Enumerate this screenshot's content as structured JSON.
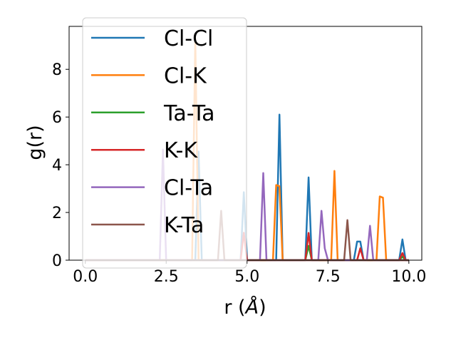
{
  "chart_data": {
    "type": "line",
    "title": "",
    "xlabel": "r (",
    "xlabel_unit": "Å",
    "xlabel_close": ")",
    "ylabel": "g(r)",
    "xlim": [
      -0.5,
      10.4
    ],
    "ylim": [
      0,
      9.8
    ],
    "xticks": [
      0.0,
      2.5,
      5.0,
      7.5,
      10.0
    ],
    "xtick_labels": [
      "0.0",
      "2.5",
      "5.0",
      "7.5",
      "10.0"
    ],
    "yticks": [
      0,
      2,
      4,
      6,
      8
    ],
    "ytick_labels": [
      "0",
      "2",
      "4",
      "6",
      "8"
    ],
    "grid": false,
    "legend_position": "top-left",
    "x_grid": {
      "start": 0,
      "stop": 10,
      "step": 0.1
    },
    "series": [
      {
        "name": "Cl-Cl",
        "color": "#1f77b4",
        "peaks": [
          [
            3.5,
            4.55
          ],
          [
            4.9,
            2.85
          ],
          [
            6.0,
            6.1
          ],
          [
            6.9,
            3.47
          ],
          [
            8.4,
            0.78
          ],
          [
            8.5,
            0.78
          ],
          [
            9.8,
            0.87
          ]
        ]
      },
      {
        "name": "Cl-K",
        "color": "#ff7f0e",
        "peaks": [
          [
            3.4,
            9.3
          ],
          [
            5.9,
            3.15
          ],
          [
            6.0,
            3.1
          ],
          [
            7.7,
            3.74
          ],
          [
            9.1,
            2.67
          ],
          [
            9.2,
            2.62
          ]
        ]
      },
      {
        "name": "Ta-Ta",
        "color": "#2ca02c",
        "peaks": [
          [
            6.9,
            0.6
          ],
          [
            9.8,
            0.15
          ]
        ]
      },
      {
        "name": "K-K",
        "color": "#d62728",
        "peaks": [
          [
            4.9,
            1.15
          ],
          [
            6.9,
            1.14
          ],
          [
            8.5,
            0.5
          ],
          [
            9.8,
            0.3
          ]
        ]
      },
      {
        "name": "Cl-Ta",
        "color": "#9467bd",
        "peaks": [
          [
            2.4,
            4.64
          ],
          [
            5.5,
            3.65
          ],
          [
            7.3,
            2.07
          ],
          [
            7.4,
            0.5
          ],
          [
            8.8,
            1.44
          ]
        ]
      },
      {
        "name": "K-Ta",
        "color": "#8c564b",
        "peaks": [
          [
            4.2,
            2.07
          ],
          [
            8.1,
            1.68
          ]
        ]
      }
    ]
  }
}
